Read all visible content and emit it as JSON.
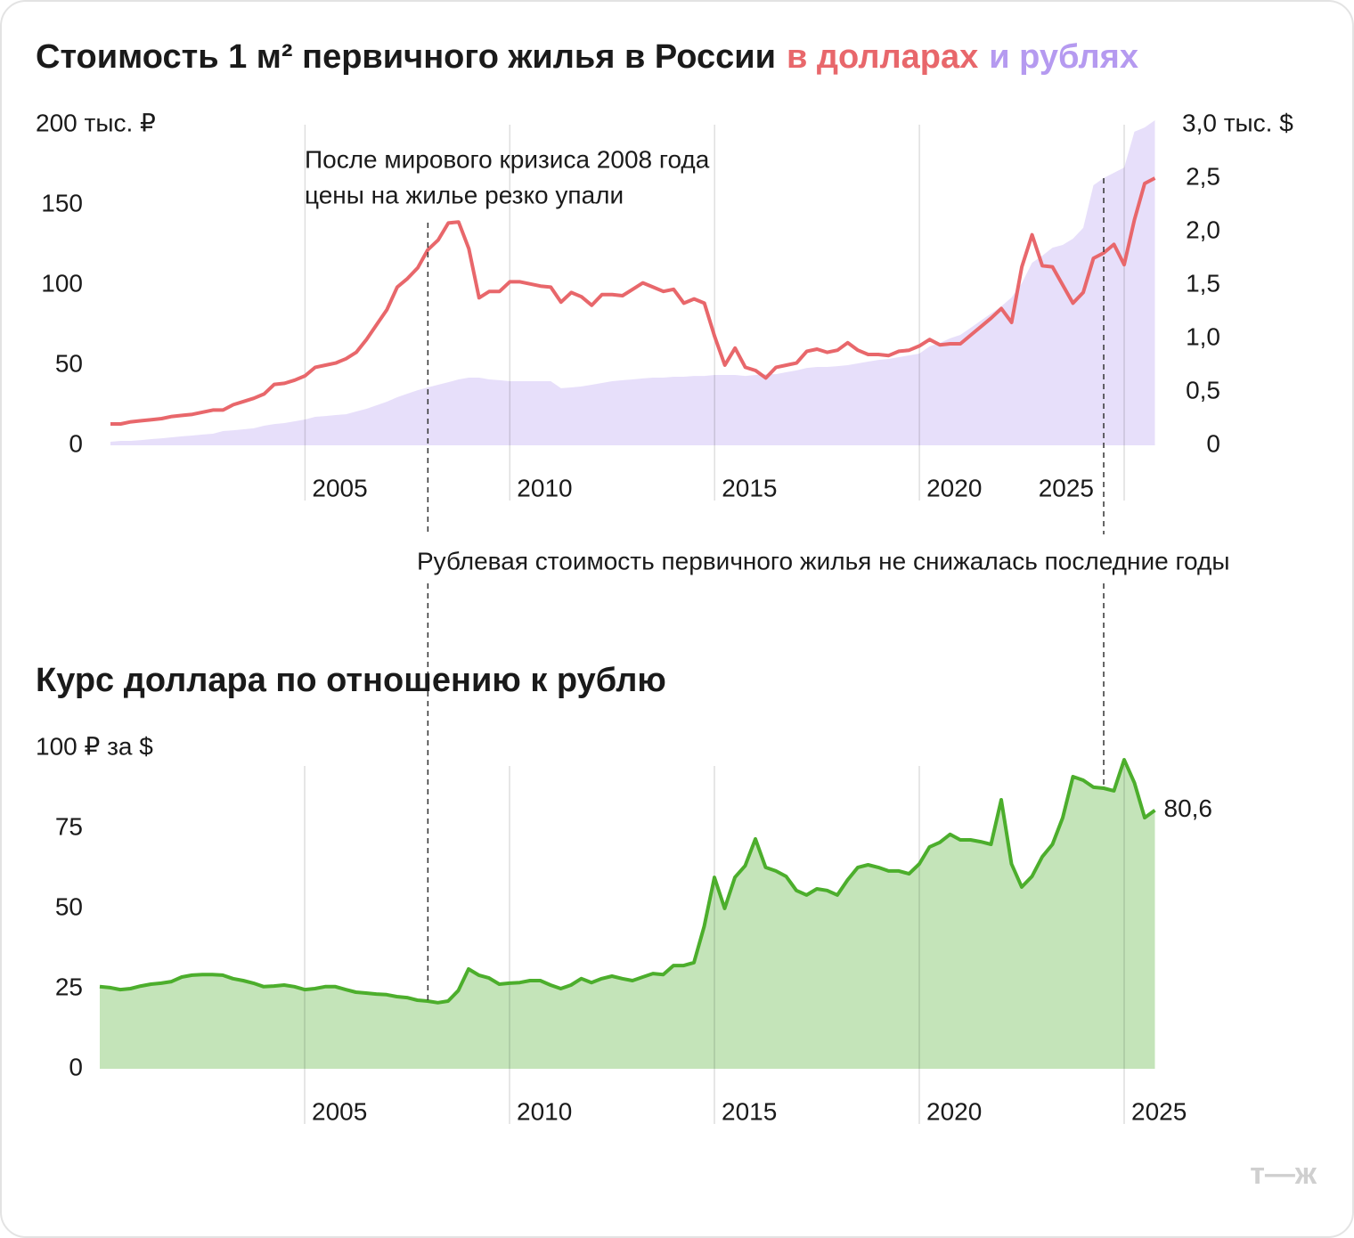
{
  "chart_data": [
    {
      "type": "line",
      "title": "Стоимость 1 м² первичного жилья в России",
      "xlim": [
        2000.25,
        2025.75
      ],
      "xticks": [
        2005,
        2010,
        2015,
        2020,
        2025
      ],
      "ylim": [
        0,
        200
      ],
      "yticks": [
        0,
        50,
        100,
        150,
        {
          "value": 200,
          "label": "200 тыс. ₽"
        }
      ],
      "y2lim": [
        0,
        3
      ],
      "y2ticks": [
        0,
        {
          "value": 0.5,
          "label": "0,5"
        },
        {
          "value": 1,
          "label": "1,0"
        },
        {
          "value": 1.5,
          "label": "1,5"
        },
        {
          "value": 2,
          "label": "2,0"
        },
        {
          "value": 2.5,
          "label": "2,5"
        },
        {
          "value": 3,
          "label": "3,0 тыс. $"
        }
      ],
      "grid": true,
      "x": [
        2000.25,
        2000.5,
        2000.75,
        2001,
        2001.25,
        2001.5,
        2001.75,
        2002,
        2002.25,
        2002.5,
        2002.75,
        2003,
        2003.25,
        2003.5,
        2003.75,
        2004,
        2004.25,
        2004.5,
        2004.75,
        2005,
        2005.25,
        2005.5,
        2005.75,
        2006,
        2006.25,
        2006.5,
        2006.75,
        2007,
        2007.25,
        2007.5,
        2007.75,
        2008,
        2008.25,
        2008.5,
        2008.75,
        2009,
        2009.25,
        2009.5,
        2009.75,
        2010,
        2010.25,
        2010.5,
        2010.75,
        2011,
        2011.25,
        2011.5,
        2011.75,
        2012,
        2012.25,
        2012.5,
        2012.75,
        2013,
        2013.25,
        2013.5,
        2013.75,
        2014,
        2014.25,
        2014.5,
        2014.75,
        2015,
        2015.25,
        2015.5,
        2015.75,
        2016,
        2016.25,
        2016.5,
        2016.75,
        2017,
        2017.25,
        2017.5,
        2017.75,
        2018,
        2018.25,
        2018.5,
        2018.75,
        2019,
        2019.25,
        2019.5,
        2019.75,
        2020,
        2020.25,
        2020.5,
        2020.75,
        2021,
        2021.25,
        2021.5,
        2021.75,
        2022,
        2022.25,
        2022.5,
        2022.75,
        2023,
        2023.25,
        2023.5,
        2023.75,
        2024,
        2024.25,
        2024.5,
        2024.75,
        2025,
        2025.25,
        2025.5,
        2025.75
      ],
      "series": [
        {
          "name": "в долларах",
          "type": "line",
          "axis": "y2",
          "color": "#e8676b",
          "values": [
            0.2,
            0.2,
            0.22,
            0.23,
            0.24,
            0.25,
            0.27,
            0.28,
            0.29,
            0.31,
            0.33,
            0.33,
            0.38,
            0.41,
            0.44,
            0.48,
            0.57,
            0.58,
            0.61,
            0.65,
            0.73,
            0.75,
            0.77,
            0.81,
            0.87,
            0.99,
            1.13,
            1.27,
            1.48,
            1.56,
            1.66,
            1.83,
            1.92,
            2.08,
            2.09,
            1.84,
            1.38,
            1.44,
            1.44,
            1.53,
            1.53,
            1.51,
            1.49,
            1.48,
            1.34,
            1.43,
            1.39,
            1.31,
            1.41,
            1.41,
            1.4,
            1.46,
            1.52,
            1.48,
            1.44,
            1.46,
            1.33,
            1.37,
            1.33,
            1.02,
            0.75,
            0.91,
            0.73,
            0.7,
            0.63,
            0.73,
            0.75,
            0.77,
            0.88,
            0.9,
            0.87,
            0.89,
            0.96,
            0.89,
            0.85,
            0.85,
            0.84,
            0.88,
            0.89,
            0.93,
            0.99,
            0.94,
            0.95,
            0.95,
            1.03,
            1.11,
            1.19,
            1.28,
            1.15,
            1.67,
            1.97,
            1.68,
            1.67,
            1.5,
            1.33,
            1.43,
            1.75,
            1.8,
            1.88,
            1.69,
            2.11,
            2.45,
            2.5
          ]
        },
        {
          "name": "и рублях",
          "type": "area",
          "axis": "y",
          "color": "#b59af0",
          "values": [
            2.2,
            2.8,
            2.8,
            3.3,
            3.9,
            4.4,
            5.0,
            5.6,
            6.1,
            6.7,
            7.2,
            8.9,
            9.4,
            10,
            10.6,
            12.2,
            13.3,
            13.9,
            15,
            16.1,
            17.8,
            18.3,
            18.9,
            19.4,
            21.1,
            22.8,
            25,
            27.2,
            30,
            32.2,
            34.4,
            36.1,
            37.8,
            39.4,
            41.1,
            42.2,
            42.2,
            41.1,
            40.6,
            40,
            40,
            40,
            40,
            40,
            35.6,
            36.1,
            36.7,
            37.8,
            38.9,
            40,
            40.6,
            41.1,
            41.7,
            42.2,
            42.2,
            42.8,
            42.8,
            43.3,
            43.3,
            43.9,
            43.9,
            43.9,
            43.3,
            43.9,
            44.4,
            44.4,
            45.6,
            46.7,
            48.3,
            48.9,
            48.9,
            49.4,
            50,
            51.1,
            52.2,
            53.3,
            53.9,
            55,
            56.1,
            57.2,
            61.7,
            63.9,
            66.7,
            68.9,
            73.3,
            77.8,
            82.2,
            86.7,
            92.2,
            101.1,
            113.9,
            118.3,
            123.3,
            125,
            128.9,
            135.6,
            162.2,
            166.7,
            170,
            173.3,
            195.6,
            198.3,
            202.8
          ]
        }
      ],
      "annotations": [
        {
          "text": [
            "После мирового кризиса 2008 года",
            "цены на жилье резко упали"
          ],
          "x": 2008
        },
        {
          "text": [
            "Рублевая стоимость первичного жилья не снижалась последние годы"
          ],
          "x": 2024.5
        }
      ]
    },
    {
      "type": "area",
      "title": "Курс доллара по отношению к рублю",
      "xlim": [
        2000,
        2025.75
      ],
      "xticks": [
        2005,
        2010,
        2015,
        2020,
        2025
      ],
      "ylim": [
        0,
        100
      ],
      "yticks": [
        0,
        25,
        50,
        75,
        {
          "value": 100,
          "label": "100 ₽ за $"
        }
      ],
      "grid": true,
      "color": "#4cae2c",
      "x": [
        2000,
        2000.25,
        2000.5,
        2000.75,
        2001,
        2001.25,
        2001.5,
        2001.75,
        2002,
        2002.25,
        2002.5,
        2002.75,
        2003,
        2003.25,
        2003.5,
        2003.75,
        2004,
        2004.25,
        2004.5,
        2004.75,
        2005,
        2005.25,
        2005.5,
        2005.75,
        2006,
        2006.25,
        2006.5,
        2006.75,
        2007,
        2007.25,
        2007.5,
        2007.75,
        2008,
        2008.25,
        2008.5,
        2008.75,
        2009,
        2009.25,
        2009.5,
        2009.75,
        2010,
        2010.25,
        2010.5,
        2010.75,
        2011,
        2011.25,
        2011.5,
        2011.75,
        2012,
        2012.25,
        2012.5,
        2012.75,
        2013,
        2013.25,
        2013.5,
        2013.75,
        2014,
        2014.25,
        2014.5,
        2014.75,
        2015,
        2015.25,
        2015.5,
        2015.75,
        2016,
        2016.25,
        2016.5,
        2016.75,
        2017,
        2017.25,
        2017.5,
        2017.75,
        2018,
        2018.25,
        2018.5,
        2018.75,
        2019,
        2019.25,
        2019.5,
        2019.75,
        2020,
        2020.25,
        2020.5,
        2020.75,
        2021,
        2021.25,
        2021.5,
        2021.75,
        2022,
        2022.25,
        2022.5,
        2022.75,
        2023,
        2023.25,
        2023.5,
        2023.75,
        2024,
        2024.25,
        2024.5,
        2024.75,
        2025,
        2025.25,
        2025.5,
        2025.75
      ],
      "values": [
        25.6,
        25.3,
        24.7,
        25,
        25.8,
        26.4,
        26.7,
        27.2,
        28.6,
        29.2,
        29.4,
        29.4,
        29.2,
        28.1,
        27.5,
        26.7,
        25.6,
        25.8,
        26.1,
        25.6,
        24.7,
        25,
        25.6,
        25.6,
        24.7,
        23.9,
        23.6,
        23.3,
        23.1,
        22.5,
        22.2,
        21.4,
        21.1,
        20.6,
        21.1,
        24.4,
        31.1,
        29.2,
        28.3,
        26.4,
        26.7,
        26.9,
        27.5,
        27.5,
        26.1,
        25,
        26.1,
        28.1,
        26.9,
        28.1,
        28.9,
        28.1,
        27.5,
        28.6,
        29.7,
        29.4,
        32.2,
        32.2,
        33.1,
        44.4,
        59.7,
        50,
        59.7,
        63.3,
        71.7,
        62.8,
        61.7,
        60,
        55.6,
        54.2,
        56.1,
        55.6,
        54.2,
        58.9,
        62.8,
        63.6,
        62.8,
        61.7,
        61.7,
        60.8,
        63.9,
        69.2,
        70.6,
        73.1,
        71.4,
        71.4,
        70.8,
        70,
        83.9,
        63.9,
        56.7,
        60,
        66.1,
        70,
        78.3,
        91.1,
        90,
        87.8,
        87.5,
        86.7,
        96.4,
        89.2,
        78.3,
        80.6
      ],
      "value_labels": [
        null,
        null,
        null,
        null,
        null,
        null,
        null,
        null,
        null,
        null,
        null,
        null,
        null,
        null,
        null,
        null,
        null,
        null,
        null,
        null,
        null,
        null,
        null,
        null,
        null,
        null,
        null,
        null,
        null,
        null,
        null,
        null,
        null,
        null,
        null,
        null,
        null,
        null,
        null,
        null,
        null,
        null,
        null,
        null,
        null,
        null,
        null,
        null,
        null,
        null,
        null,
        null,
        null,
        null,
        null,
        null,
        null,
        null,
        null,
        null,
        null,
        null,
        null,
        null,
        null,
        null,
        null,
        null,
        null,
        null,
        null,
        null,
        null,
        null,
        null,
        null,
        null,
        null,
        null,
        null,
        null,
        null,
        null,
        null,
        null,
        null,
        null,
        null,
        null,
        null,
        null,
        null,
        null,
        null,
        null,
        null,
        null,
        null,
        null,
        null,
        null,
        null,
        null,
        "80,6"
      ]
    }
  ],
  "logo": "т—ж"
}
